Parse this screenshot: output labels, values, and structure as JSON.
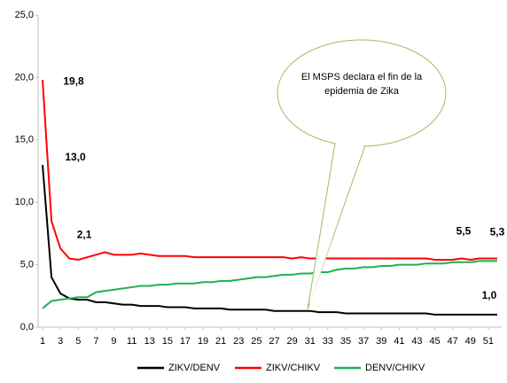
{
  "chart_data": {
    "type": "line",
    "x": [
      1,
      2,
      3,
      4,
      5,
      6,
      7,
      8,
      9,
      10,
      11,
      12,
      13,
      14,
      15,
      16,
      17,
      18,
      19,
      20,
      21,
      22,
      23,
      24,
      25,
      26,
      27,
      28,
      29,
      30,
      31,
      32,
      33,
      34,
      35,
      36,
      37,
      38,
      39,
      40,
      41,
      42,
      43,
      44,
      45,
      46,
      47,
      48,
      49,
      50,
      51,
      52
    ],
    "xlim": [
      0.5,
      52.5
    ],
    "xticks": [
      1,
      3,
      5,
      7,
      9,
      11,
      13,
      15,
      17,
      19,
      21,
      23,
      25,
      27,
      29,
      31,
      33,
      35,
      37,
      39,
      41,
      43,
      45,
      47,
      49,
      51
    ],
    "ylim": [
      0,
      25
    ],
    "yticks": [
      {
        "value": 0,
        "label": "0,0"
      },
      {
        "value": 5,
        "label": "5,0"
      },
      {
        "value": 10,
        "label": "10,0"
      },
      {
        "value": 15,
        "label": "15,0"
      },
      {
        "value": 20,
        "label": "20,0"
      },
      {
        "value": 25,
        "label": "25,0"
      }
    ],
    "series": [
      {
        "name": "ZIKV/DENV",
        "color": "#000000",
        "values": [
          13.0,
          4.0,
          2.7,
          2.3,
          2.2,
          2.2,
          2.0,
          2.0,
          1.9,
          1.8,
          1.8,
          1.7,
          1.7,
          1.7,
          1.6,
          1.6,
          1.6,
          1.5,
          1.5,
          1.5,
          1.5,
          1.4,
          1.4,
          1.4,
          1.4,
          1.4,
          1.3,
          1.3,
          1.3,
          1.3,
          1.3,
          1.2,
          1.2,
          1.2,
          1.1,
          1.1,
          1.1,
          1.1,
          1.1,
          1.1,
          1.1,
          1.1,
          1.1,
          1.1,
          1.0,
          1.0,
          1.0,
          1.0,
          1.0,
          1.0,
          1.0,
          1.0
        ],
        "value_labels": [
          "13,0",
          null,
          null,
          null,
          null,
          null,
          null,
          null,
          null,
          null,
          null,
          null,
          null,
          null,
          null,
          null,
          null,
          null,
          null,
          null,
          null,
          null,
          null,
          null,
          null,
          null,
          null,
          null,
          null,
          null,
          null,
          null,
          null,
          null,
          null,
          null,
          null,
          null,
          null,
          null,
          null,
          null,
          null,
          null,
          null,
          null,
          null,
          null,
          null,
          null,
          null,
          "1,0"
        ]
      },
      {
        "name": "ZIKV/CHIKV",
        "color": "#ff0000",
        "values": [
          19.8,
          8.5,
          6.3,
          5.5,
          5.4,
          5.6,
          5.8,
          6.0,
          5.8,
          5.8,
          5.8,
          5.9,
          5.8,
          5.7,
          5.7,
          5.7,
          5.7,
          5.6,
          5.6,
          5.6,
          5.6,
          5.6,
          5.6,
          5.6,
          5.6,
          5.6,
          5.6,
          5.6,
          5.5,
          5.6,
          5.5,
          5.5,
          5.5,
          5.5,
          5.5,
          5.5,
          5.5,
          5.5,
          5.5,
          5.5,
          5.5,
          5.5,
          5.5,
          5.5,
          5.4,
          5.4,
          5.4,
          5.5,
          5.4,
          5.5,
          5.5,
          5.5
        ],
        "value_labels": [
          "19,8",
          null,
          null,
          null,
          null,
          null,
          null,
          null,
          null,
          null,
          null,
          null,
          null,
          null,
          null,
          null,
          null,
          null,
          null,
          null,
          null,
          null,
          null,
          null,
          null,
          null,
          null,
          null,
          null,
          null,
          null,
          null,
          null,
          null,
          null,
          null,
          null,
          null,
          null,
          null,
          null,
          null,
          null,
          null,
          null,
          null,
          null,
          null,
          null,
          null,
          null,
          "5,5"
        ]
      },
      {
        "name": "DENV/CHIKV",
        "color": "#1faf55",
        "values": [
          1.5,
          2.1,
          2.2,
          2.3,
          2.4,
          2.4,
          2.8,
          2.9,
          3.0,
          3.1,
          3.2,
          3.3,
          3.3,
          3.4,
          3.4,
          3.5,
          3.5,
          3.5,
          3.6,
          3.6,
          3.7,
          3.7,
          3.8,
          3.9,
          4.0,
          4.0,
          4.1,
          4.2,
          4.2,
          4.3,
          4.3,
          4.4,
          4.4,
          4.6,
          4.7,
          4.7,
          4.8,
          4.8,
          4.9,
          4.9,
          5.0,
          5.0,
          5.0,
          5.1,
          5.1,
          5.1,
          5.2,
          5.2,
          5.2,
          5.3,
          5.3,
          5.3
        ],
        "value_labels": [
          null,
          "2,1",
          null,
          null,
          null,
          null,
          null,
          null,
          null,
          null,
          null,
          null,
          null,
          null,
          null,
          null,
          null,
          null,
          null,
          null,
          null,
          null,
          null,
          null,
          null,
          null,
          null,
          null,
          null,
          null,
          null,
          null,
          null,
          null,
          null,
          null,
          null,
          null,
          null,
          null,
          null,
          null,
          null,
          null,
          null,
          null,
          null,
          null,
          null,
          null,
          null,
          "5,3"
        ]
      }
    ],
    "annotation": [
      "El MSPS declara el fin de la",
      "epidemia de Zika"
    ],
    "legend": "bottom"
  }
}
